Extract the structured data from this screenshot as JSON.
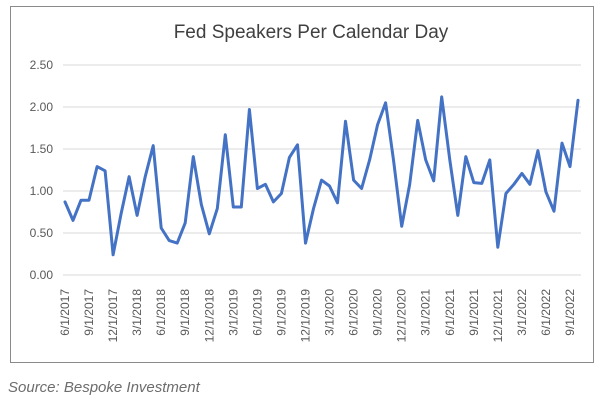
{
  "chart_data": {
    "type": "line",
    "title": "Fed Speakers Per Calendar Day",
    "xlabel": "",
    "ylabel": "",
    "ylim": [
      0,
      2.5
    ],
    "yticks": [
      "0.00",
      "0.50",
      "1.00",
      "1.50",
      "2.00",
      "2.50"
    ],
    "grid": true,
    "legend": "none",
    "x_tick_labels": [
      "6/1/2017",
      "9/1/2017",
      "12/1/2017",
      "3/1/2018",
      "6/1/2018",
      "9/1/2018",
      "12/1/2018",
      "3/1/2019",
      "6/1/2019",
      "9/1/2019",
      "12/1/2019",
      "3/1/2020",
      "6/1/2020",
      "9/1/2020",
      "12/1/2020",
      "3/1/2021",
      "6/1/2021",
      "9/1/2021",
      "12/1/2021",
      "3/1/2022",
      "6/1/2022",
      "9/1/2022"
    ],
    "series": [
      {
        "name": "Fed Speakers Per Calendar Day",
        "color": "#4472c4",
        "values": [
          0.87,
          0.65,
          0.89,
          0.89,
          1.29,
          1.24,
          0.24,
          0.73,
          1.17,
          0.71,
          1.17,
          1.54,
          0.56,
          0.41,
          0.38,
          0.62,
          1.41,
          0.84,
          0.49,
          0.79,
          1.67,
          0.81,
          0.81,
          1.97,
          1.03,
          1.08,
          0.87,
          0.97,
          1.4,
          1.55,
          0.38,
          0.79,
          1.13,
          1.06,
          0.86,
          1.83,
          1.13,
          1.03,
          1.37,
          1.79,
          2.05,
          1.36,
          0.58,
          1.08,
          1.84,
          1.37,
          1.12,
          2.12,
          1.37,
          0.71,
          1.41,
          1.1,
          1.09,
          1.37,
          0.33,
          0.97,
          1.08,
          1.21,
          1.08,
          1.48,
          0.99,
          0.76,
          1.57,
          1.29,
          2.08
        ]
      }
    ]
  },
  "source_text": "Source: Bespoke Investment"
}
